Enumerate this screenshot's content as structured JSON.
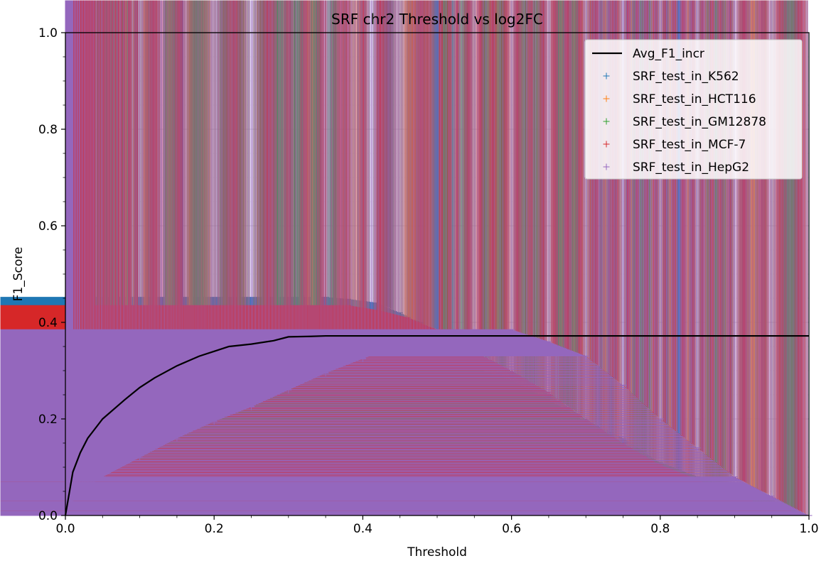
{
  "chart_data": {
    "type": "scatter",
    "title": "SRF chr2 Threshold vs log2FC",
    "xlabel": "Threshold",
    "ylabel": "F1_Score",
    "xlim": [
      0.0,
      1.0
    ],
    "ylim": [
      0.0,
      1.0
    ],
    "xticks": [
      "0.0",
      "0.2",
      "0.4",
      "0.6",
      "0.8",
      "1.0"
    ],
    "yticks": [
      "0.0",
      "0.2",
      "0.4",
      "0.6",
      "0.8",
      "1.0"
    ],
    "grid": true,
    "minor_grid": true,
    "legend_position": "top-right",
    "series": [
      {
        "name": "Avg_F1_incr",
        "kind": "line",
        "color": "#000000",
        "x": [
          0.0,
          0.01,
          0.02,
          0.03,
          0.05,
          0.08,
          0.1,
          0.12,
          0.15,
          0.18,
          0.2,
          0.22,
          0.25,
          0.28,
          0.3,
          0.33,
          0.35,
          0.38,
          0.4,
          1.0
        ],
        "y": [
          0.0,
          0.09,
          0.13,
          0.16,
          0.2,
          0.24,
          0.265,
          0.285,
          0.31,
          0.33,
          0.34,
          0.35,
          0.355,
          0.362,
          0.37,
          0.371,
          0.372,
          0.372,
          0.372,
          0.372
        ]
      },
      {
        "name": "SRF_test_in_K562",
        "kind": "scatter",
        "color": "#1f77b4",
        "x": [
          0.0,
          0.01,
          0.02,
          0.04,
          0.06,
          0.08,
          0.1,
          0.13,
          0.16,
          0.2,
          0.24,
          0.28,
          0.32,
          0.35,
          0.38,
          0.42,
          0.45,
          0.48,
          0.52,
          0.55,
          0.6,
          0.65,
          0.7,
          0.75,
          0.8,
          0.85,
          0.9,
          0.95,
          1.0
        ],
        "y": [
          0.0,
          0.1,
          0.15,
          0.2,
          0.24,
          0.27,
          0.3,
          0.33,
          0.37,
          0.4,
          0.43,
          0.445,
          0.45,
          0.452,
          0.448,
          0.44,
          0.42,
          0.4,
          0.37,
          0.34,
          0.3,
          0.25,
          0.2,
          0.16,
          0.11,
          0.07,
          0.04,
          0.02,
          0.0
        ]
      },
      {
        "name": "SRF_test_in_HCT116",
        "kind": "scatter",
        "color": "#ff7f0e",
        "x": [
          0.0,
          0.01,
          0.02,
          0.03,
          0.05,
          0.07,
          0.1,
          0.13,
          0.16,
          0.2,
          0.25,
          0.3,
          0.35,
          0.4,
          0.45,
          0.5,
          0.55,
          0.6,
          0.65,
          0.7,
          0.75,
          0.8,
          0.85,
          0.9,
          0.95,
          1.0
        ],
        "y": [
          0.0,
          0.14,
          0.19,
          0.22,
          0.26,
          0.29,
          0.32,
          0.335,
          0.345,
          0.345,
          0.33,
          0.315,
          0.295,
          0.27,
          0.24,
          0.2,
          0.15,
          0.1,
          0.08,
          0.07,
          0.05,
          0.03,
          0.025,
          0.02,
          0.01,
          0.0
        ]
      },
      {
        "name": "SRF_test_in_GM12878",
        "kind": "scatter",
        "color": "#2ca02c",
        "x": [
          0.0,
          0.01,
          0.02,
          0.04,
          0.06,
          0.08,
          0.1,
          0.13,
          0.16,
          0.2,
          0.25,
          0.3,
          0.35,
          0.38,
          0.42,
          0.46,
          0.5,
          0.55,
          0.6,
          0.65,
          0.7,
          0.75,
          0.8,
          0.85,
          0.9,
          0.95,
          1.0
        ],
        "y": [
          0.0,
          0.11,
          0.15,
          0.2,
          0.24,
          0.27,
          0.29,
          0.315,
          0.34,
          0.355,
          0.37,
          0.378,
          0.375,
          0.378,
          0.37,
          0.355,
          0.335,
          0.305,
          0.28,
          0.24,
          0.195,
          0.15,
          0.11,
          0.08,
          0.055,
          0.03,
          0.0
        ]
      },
      {
        "name": "SRF_test_in_MCF-7",
        "kind": "scatter",
        "color": "#d62728",
        "x": [
          0.0,
          0.01,
          0.02,
          0.04,
          0.06,
          0.08,
          0.1,
          0.13,
          0.16,
          0.2,
          0.24,
          0.28,
          0.32,
          0.36,
          0.38,
          0.42,
          0.46,
          0.5,
          0.55,
          0.6,
          0.65,
          0.7,
          0.75,
          0.8,
          0.85,
          0.9,
          0.95,
          1.0
        ],
        "y": [
          0.0,
          0.06,
          0.11,
          0.17,
          0.22,
          0.26,
          0.29,
          0.32,
          0.35,
          0.375,
          0.395,
          0.415,
          0.425,
          0.43,
          0.435,
          0.425,
          0.41,
          0.385,
          0.34,
          0.3,
          0.255,
          0.2,
          0.15,
          0.105,
          0.075,
          0.04,
          0.02,
          0.0
        ]
      },
      {
        "name": "SRF_test_in_HepG2",
        "kind": "scatter",
        "color": "#9467bd",
        "x": [
          0.0,
          0.01,
          0.02,
          0.05,
          0.1,
          0.15,
          0.2,
          0.25,
          0.3,
          0.35,
          0.4,
          0.45,
          0.5,
          0.53,
          0.55,
          0.6,
          0.65,
          0.7,
          0.75,
          0.8,
          0.85,
          0.9,
          0.95,
          1.0
        ],
        "y": [
          0.0,
          0.035,
          0.05,
          0.08,
          0.12,
          0.16,
          0.195,
          0.225,
          0.26,
          0.295,
          0.325,
          0.355,
          0.375,
          0.382,
          0.385,
          0.385,
          0.36,
          0.33,
          0.27,
          0.2,
          0.14,
          0.08,
          0.04,
          0.0
        ]
      }
    ]
  }
}
